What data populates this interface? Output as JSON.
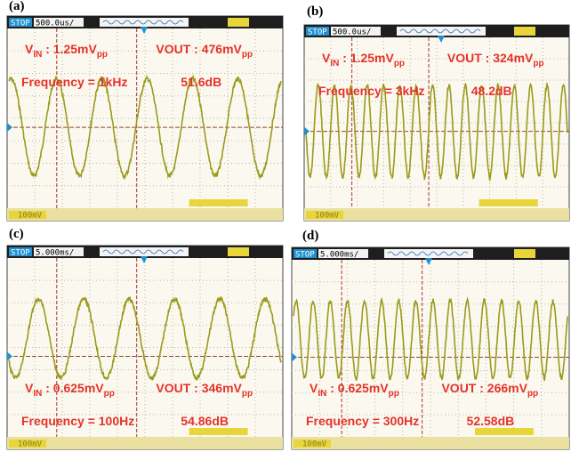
{
  "panels": [
    {
      "label": "(a)",
      "status": "STOP",
      "timebase": "500.0us/",
      "channel": "100mV",
      "vin": {
        "symbol": "V",
        "symbol_sub": "IN",
        "text": " : 1.25mV",
        "unit_sub": "pp"
      },
      "vout": {
        "text": "VOUT : 476mV",
        "unit_sub": "pp"
      },
      "frequency": "Frequency = 1kHz",
      "gain": "51.6dB"
    },
    {
      "label": "(b)",
      "status": "STOP",
      "timebase": "500.0us/",
      "channel": "100mV",
      "vin": {
        "symbol": "V",
        "symbol_sub": "IN",
        "text": " : 1.25mV",
        "unit_sub": "pp"
      },
      "vout": {
        "text": "VOUT : 324mV",
        "unit_sub": "pp"
      },
      "frequency": "Frequency = 3kHz",
      "gain": "48.2dB"
    },
    {
      "label": "(c)",
      "status": "STOP",
      "timebase": "5.000ms/",
      "channel": "100mV",
      "vin": {
        "symbol": "V",
        "symbol_sub": "IN",
        "text": " : 0.625mV",
        "unit_sub": "pp"
      },
      "vout": {
        "text": "VOUT : 346mV",
        "unit_sub": "pp"
      },
      "frequency": "Frequency = 100Hz",
      "gain": "54.86dB"
    },
    {
      "label": "(d)",
      "status": "STOP",
      "timebase": "5.000ms/",
      "channel": "100mV",
      "vin": {
        "symbol": "V",
        "symbol_sub": "IN",
        "text": " : 0.625mV",
        "unit_sub": "pp"
      },
      "vout": {
        "text": "VOUT : 266mV",
        "unit_sub": "pp"
      },
      "frequency": "Frequency = 300Hz",
      "gain": "52.58dB"
    }
  ]
}
